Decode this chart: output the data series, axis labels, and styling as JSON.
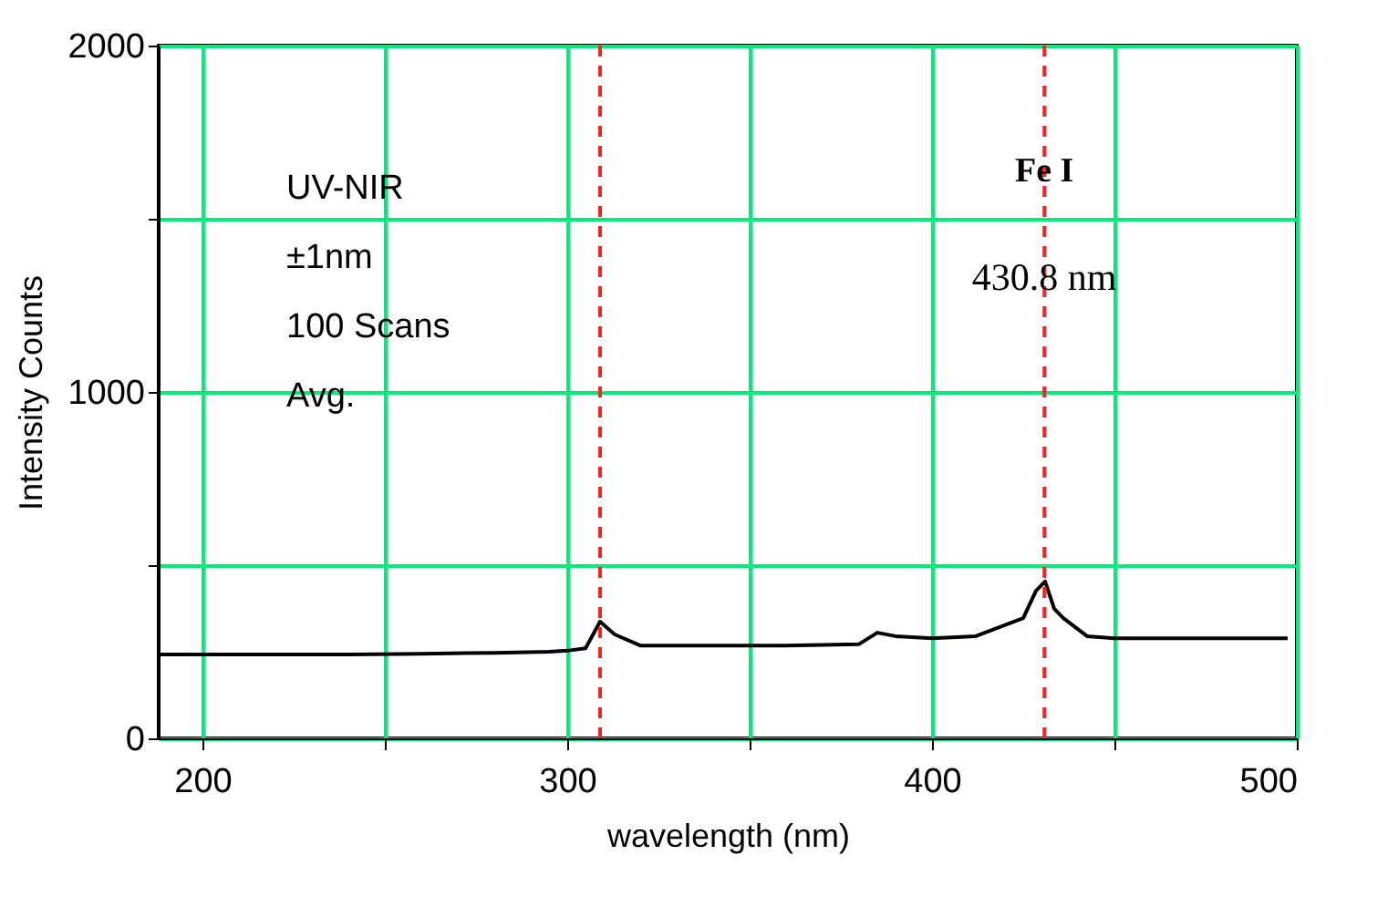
{
  "chart_data": {
    "type": "line",
    "xlabel": "wavelength (nm)",
    "ylabel": "Intensity Counts",
    "x": [
      188,
      200,
      220,
      240,
      260,
      280,
      295,
      300,
      305,
      309,
      313,
      320,
      340,
      360,
      380,
      385,
      390,
      400,
      412,
      425,
      428.5,
      431,
      433.5,
      436,
      442.5,
      450,
      470,
      497.5
    ],
    "series": [
      {
        "color": "#000000",
        "values": [
          242,
          242,
          242,
          242,
          244,
          247,
          250,
          253,
          260,
          337,
          300,
          268,
          268,
          268,
          272,
          305,
          295,
          289,
          295,
          347,
          426,
          453,
          374,
          347,
          295,
          289,
          289,
          289
        ]
      }
    ],
    "xlim": [
      188,
      500
    ],
    "ylim": [
      0,
      2000
    ],
    "xticks": [
      200,
      {
        "value": 250,
        "label": null
      },
      300,
      {
        "value": 350,
        "label": null
      },
      400,
      {
        "value": 450,
        "label": null
      },
      500
    ],
    "yticks": [
      0,
      {
        "value": 500,
        "label": null
      },
      1000,
      {
        "value": 1500,
        "label": null
      },
      2000
    ],
    "grid": true,
    "marker": "none",
    "line_style": "solid",
    "ref_lines": [
      {
        "axis": "x",
        "value": 309,
        "color": "#ff2020",
        "line_style": "dashed"
      },
      {
        "axis": "x",
        "value": 430.8,
        "label": "430.8 nm",
        "color": "#ff2020",
        "line_style": "dashed"
      }
    ],
    "annotations": [
      "UV-NIR",
      "±1nm",
      "100 Scans",
      "Avg.",
      {
        "text": "Fe I",
        "x": 430.8,
        "y": 1640
      }
    ]
  }
}
